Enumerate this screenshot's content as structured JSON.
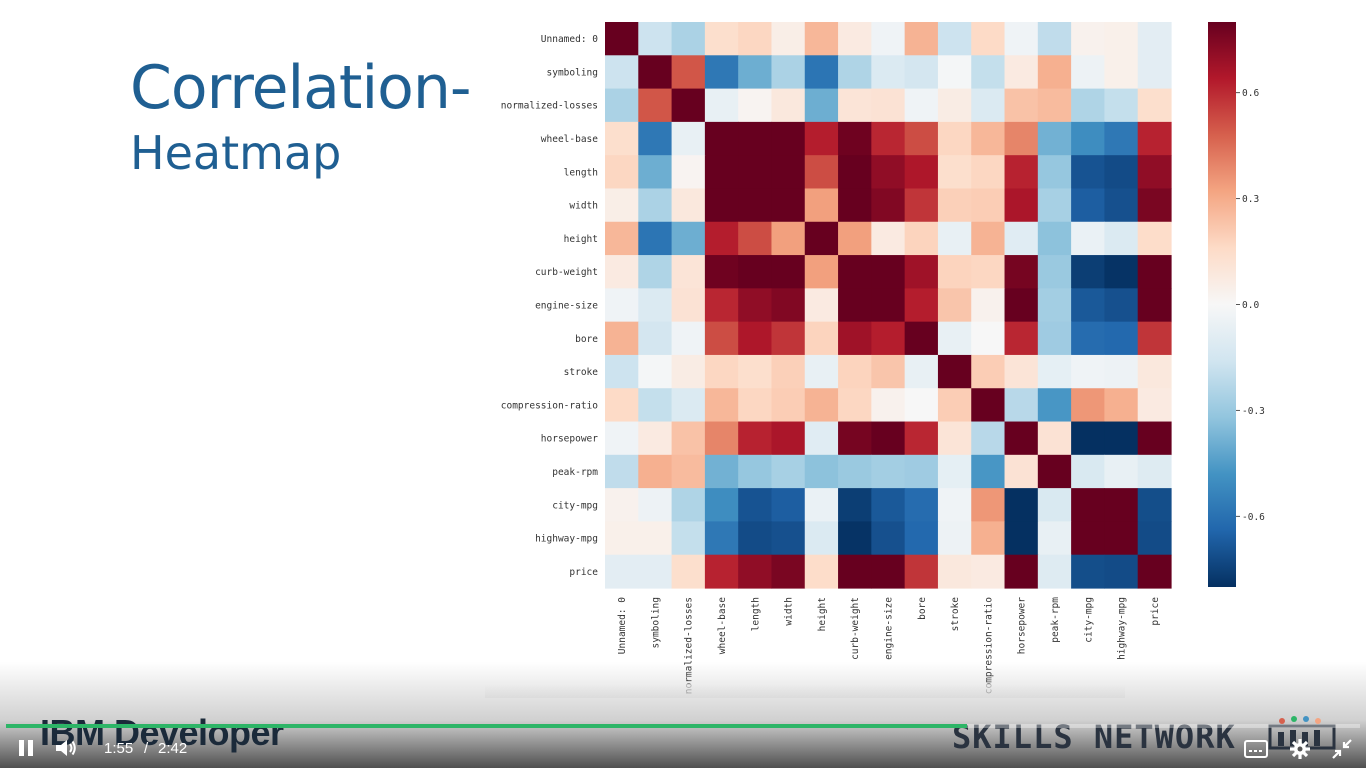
{
  "slide": {
    "title_line1": "Correlation-",
    "title_line2": "Heatmap"
  },
  "chart_data": {
    "type": "heatmap",
    "title": "",
    "labels": [
      "Unnamed: 0",
      "symboling",
      "normalized-losses",
      "wheel-base",
      "length",
      "width",
      "height",
      "curb-weight",
      "engine-size",
      "bore",
      "stroke",
      "compression-ratio",
      "horsepower",
      "peak-rpm",
      "city-mpg",
      "highway-mpg",
      "price"
    ],
    "colorbar": {
      "ticks": [
        0.6,
        0.3,
        0.0,
        -0.3,
        -0.6
      ],
      "tick_labels": [
        "0.6",
        "0.3",
        "0.0",
        "-0.3",
        "-0.6"
      ],
      "range": [
        -0.8,
        0.8
      ],
      "colormap": "RdBu_r"
    },
    "values": [
      [
        1.0,
        -0.16,
        -0.24,
        0.13,
        0.16,
        0.05,
        0.25,
        0.07,
        -0.03,
        0.26,
        -0.16,
        0.15,
        -0.03,
        -0.19,
        0.03,
        0.04,
        -0.08
      ],
      [
        -0.16,
        1.0,
        0.47,
        -0.54,
        -0.37,
        -0.24,
        -0.55,
        -0.23,
        -0.11,
        -0.14,
        -0.01,
        -0.18,
        0.07,
        0.27,
        -0.04,
        0.04,
        -0.08
      ],
      [
        -0.24,
        0.47,
        1.0,
        -0.06,
        0.02,
        0.08,
        -0.37,
        0.1,
        0.11,
        -0.03,
        0.06,
        -0.11,
        0.22,
        0.24,
        -0.23,
        -0.18,
        0.13
      ],
      [
        0.13,
        -0.54,
        -0.06,
        1.0,
        0.88,
        0.81,
        0.59,
        0.78,
        0.57,
        0.49,
        0.16,
        0.25,
        0.37,
        -0.36,
        -0.47,
        -0.54,
        0.58
      ],
      [
        0.16,
        -0.37,
        0.02,
        0.88,
        1.0,
        0.86,
        0.49,
        0.88,
        0.69,
        0.61,
        0.13,
        0.16,
        0.58,
        -0.29,
        -0.67,
        -0.7,
        0.69
      ],
      [
        0.05,
        -0.24,
        0.08,
        0.81,
        0.86,
        1.0,
        0.31,
        0.87,
        0.73,
        0.54,
        0.18,
        0.19,
        0.62,
        -0.25,
        -0.63,
        -0.68,
        0.75
      ],
      [
        0.25,
        -0.55,
        -0.37,
        0.59,
        0.49,
        0.31,
        1.0,
        0.31,
        0.07,
        0.17,
        -0.06,
        0.26,
        -0.09,
        -0.31,
        -0.05,
        -0.11,
        0.14
      ],
      [
        0.07,
        -0.23,
        0.1,
        0.78,
        0.88,
        0.87,
        0.31,
        1.0,
        0.85,
        0.65,
        0.17,
        0.16,
        0.76,
        -0.28,
        -0.75,
        -0.79,
        0.83
      ],
      [
        -0.03,
        -0.11,
        0.11,
        0.57,
        0.69,
        0.73,
        0.07,
        0.85,
        1.0,
        0.59,
        0.21,
        0.03,
        0.82,
        -0.26,
        -0.65,
        -0.68,
        0.87
      ],
      [
        0.26,
        -0.14,
        -0.03,
        0.49,
        0.61,
        0.54,
        0.17,
        0.65,
        0.59,
        1.0,
        -0.06,
        0.0,
        0.57,
        -0.27,
        -0.58,
        -0.59,
        0.54
      ],
      [
        -0.16,
        -0.01,
        0.06,
        0.16,
        0.13,
        0.18,
        -0.06,
        0.17,
        0.21,
        -0.06,
        1.0,
        0.19,
        0.1,
        -0.07,
        -0.03,
        -0.04,
        0.08
      ],
      [
        0.15,
        -0.18,
        -0.11,
        0.25,
        0.16,
        0.19,
        0.26,
        0.16,
        0.03,
        0.0,
        0.19,
        1.0,
        -0.21,
        -0.44,
        0.33,
        0.27,
        0.07
      ],
      [
        -0.03,
        0.07,
        0.22,
        0.37,
        0.58,
        0.62,
        -0.09,
        0.76,
        0.82,
        0.57,
        0.1,
        -0.21,
        1.0,
        0.11,
        -0.82,
        -0.8,
        0.81
      ],
      [
        -0.19,
        0.27,
        0.24,
        -0.36,
        -0.29,
        -0.25,
        -0.31,
        -0.28,
        -0.26,
        -0.27,
        -0.07,
        -0.44,
        0.11,
        1.0,
        -0.12,
        -0.06,
        -0.1
      ],
      [
        0.03,
        -0.04,
        -0.23,
        -0.47,
        -0.67,
        -0.63,
        -0.05,
        -0.75,
        -0.65,
        -0.58,
        -0.03,
        0.33,
        -0.82,
        -0.12,
        1.0,
        0.97,
        -0.69
      ],
      [
        0.04,
        0.04,
        -0.18,
        -0.54,
        -0.7,
        -0.68,
        -0.11,
        -0.79,
        -0.68,
        -0.59,
        -0.04,
        0.27,
        -0.8,
        -0.06,
        0.97,
        1.0,
        -0.7
      ],
      [
        -0.08,
        -0.08,
        0.13,
        0.58,
        0.69,
        0.75,
        0.14,
        0.83,
        0.87,
        0.54,
        0.08,
        0.07,
        0.81,
        -0.1,
        -0.69,
        -0.7,
        1.0
      ]
    ]
  },
  "branding": {
    "left_text": "IBM Developer",
    "right_text": "SKILLS NETWORK"
  },
  "player": {
    "current_time": "1:55",
    "separator": "/",
    "duration": "2:42",
    "progress_fraction": 0.71,
    "accent_color": "#2db567",
    "play_state_icon": "pause-icon",
    "volume_icon": "volume-icon",
    "captions_icon": "captions-icon",
    "settings_icon": "gear-icon",
    "exit_fullscreen_icon": "exit-fullscreen-icon"
  }
}
